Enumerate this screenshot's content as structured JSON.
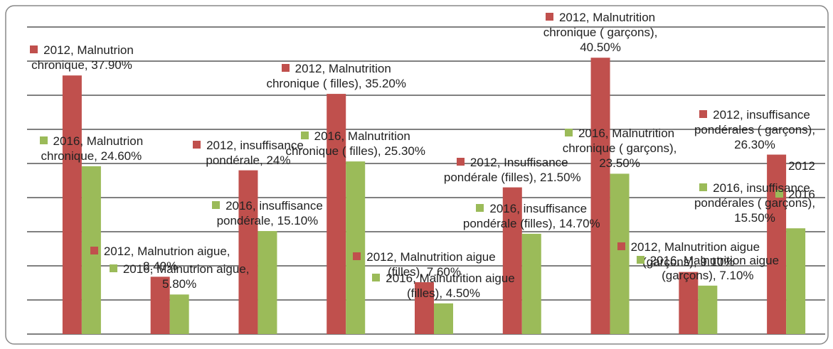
{
  "chart_data": {
    "type": "bar",
    "categories": [
      null,
      null,
      null,
      null,
      null,
      null,
      null,
      null,
      null
    ],
    "series": [
      {
        "name": "2012",
        "color": "#c0504d",
        "values": [
          37.9,
          8.4,
          24,
          35.2,
          7.6,
          21.5,
          40.5,
          9.1,
          26.3
        ],
        "value_labels": [
          "2012, Malnutrion chronique, 37.90%",
          "2012, Malnutrion aigue, 8.40%",
          "2012, insuffisance pondérale, 24%",
          "2012, Malnutrition chronique ( filles), 35.20%",
          "2012, Malnutrition aigue (filles), 7.60%",
          "2012, Insuffisance pondérale (filles), 21.50%",
          "2012, Malnutrition chronique ( garçons), 40.50%",
          "2012, Malnutrition aigue (garçons), 9.10%",
          "2012, insuffisance pondérales ( garçons), 26.30%"
        ]
      },
      {
        "name": "2016",
        "color": "#9bbb59",
        "values": [
          24.6,
          5.8,
          15.1,
          25.3,
          4.5,
          14.7,
          23.5,
          7.1,
          15.5
        ],
        "value_labels": [
          "2016, Malnutrion chronique, 24.60%",
          "2016, Malnutrion aigue, 5.80%",
          "2016, insuffisance pondérale, 15.10%",
          "2016, Malnutrition chronique ( filles), 25.30%",
          "2016, Malnutrition aigue (filles), 4.50%",
          "2016, insuffisance pondérale (filles), 14.70%",
          "2016, Malnutrition chronique ( garçons), 23.50%",
          "2016, Malnutrition aigue (garçons), 7.10%",
          "2016, insuffisance pondérales ( garçons), 15.50%"
        ]
      }
    ],
    "ylim": [
      0,
      45
    ],
    "yticks": [
      0,
      5,
      10,
      15,
      20,
      25,
      30,
      35,
      40,
      45
    ],
    "grid": true
  }
}
